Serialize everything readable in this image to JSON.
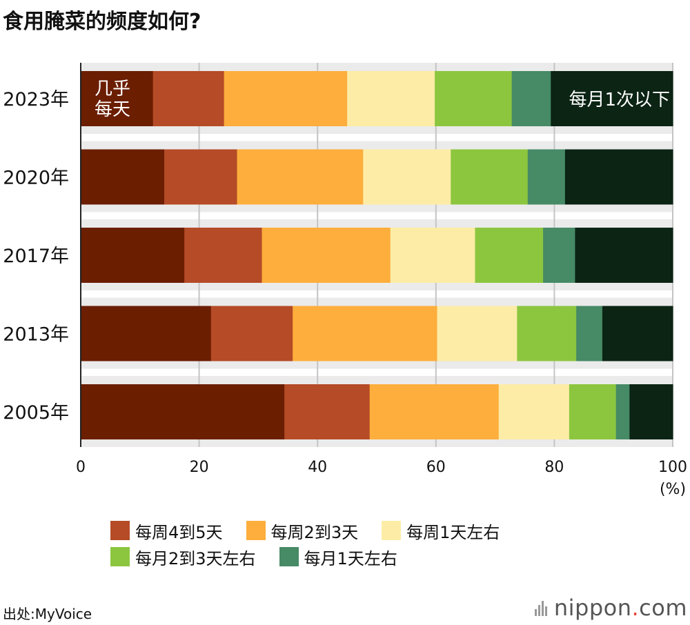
{
  "title": "食用腌菜的频度如何?",
  "source": "出处:MyVoice",
  "brand": {
    "name": "nippon",
    "dot": ".",
    "tld": "com"
  },
  "chart_data": {
    "type": "bar",
    "orientation": "horizontal",
    "stacked": true,
    "categories": [
      "2023年",
      "2020年",
      "2017年",
      "2013年",
      "2005年"
    ],
    "series": [
      {
        "name": "几乎每天",
        "color": "#6b1e00",
        "values": [
          12.2,
          14.1,
          17.5,
          22.0,
          34.4
        ]
      },
      {
        "name": "每周4到5天",
        "color": "#b54b27",
        "values": [
          12.0,
          12.3,
          13.1,
          13.8,
          14.4
        ]
      },
      {
        "name": "每周2到3天",
        "color": "#fdae3c",
        "values": [
          20.8,
          21.3,
          21.7,
          24.4,
          21.8
        ]
      },
      {
        "name": "每周1天左右",
        "color": "#fdeca6",
        "values": [
          14.8,
          14.8,
          14.3,
          13.5,
          11.9
        ]
      },
      {
        "name": "每月2到3天左右",
        "color": "#8cc63f",
        "values": [
          13.0,
          13.0,
          11.5,
          10.0,
          7.9
        ]
      },
      {
        "name": "每月1天左右",
        "color": "#468a66",
        "values": [
          6.6,
          6.3,
          5.4,
          4.4,
          2.3
        ]
      },
      {
        "name": "每月1次以下",
        "color": "#0b2414",
        "values": [
          20.6,
          18.2,
          16.5,
          11.9,
          7.3
        ]
      }
    ],
    "xlim": [
      0,
      100
    ],
    "xticks": [
      "0",
      "20",
      "40",
      "60",
      "80",
      "100"
    ],
    "xunit": "(%)",
    "inline_labels": {
      "first": [
        "几乎",
        "每天"
      ],
      "last": "每月1次以下"
    },
    "legend": [
      [
        "每周4到5天",
        "每周2到3天",
        "每周1天左右"
      ],
      [
        "每月2到3天左右",
        "每月1天左右"
      ]
    ],
    "grid": "vertical",
    "legend_position": "bottom"
  }
}
